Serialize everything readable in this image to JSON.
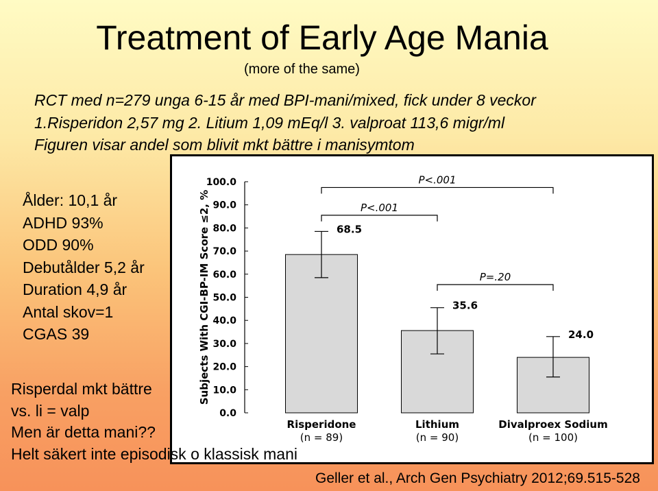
{
  "slide": {
    "title": "Treatment of Early Age Mania",
    "subtitle": "(more of the same)",
    "lines": [
      "RCT med n=279 unga 6-15 år med BPI-mani/mixed, fick under 8 veckor",
      "1.Risperidon 2,57 mg  2. Litium 1,09 mEq/l   3. valproat 113,6  migr/ml",
      "Figuren visar andel som blivit mkt bättre i manisymtom"
    ],
    "stats": [
      "Ålder: 10,1 år",
      "ADHD 93%",
      "ODD 90%",
      "Debutålder 5,2 år",
      "Duration 4,9 år",
      "Antal skov=1",
      "CGAS 39"
    ],
    "bottom_lines": [
      "Risperdal mkt bättre",
      "vs. li = valp",
      "Men är detta mani??",
      "Helt säkert inte episodisk o klassisk mani"
    ],
    "reference": "Geller et al., Arch Gen Psychiatry 2012;69.515-528"
  },
  "chart_data": {
    "type": "bar",
    "title": "",
    "ylabel": "Subjects With CGI-BP-IM Score ≤2, %",
    "ylim": [
      0,
      100
    ],
    "yticks": [
      "0.0",
      "10.0",
      "20.0",
      "30.0",
      "40.0",
      "50.0",
      "60.0",
      "70.0",
      "80.0",
      "90.0",
      "100.0"
    ],
    "categories": [
      "Risperidone",
      "Lithium",
      "Divalproex Sodium"
    ],
    "category_n": [
      "(n = 89)",
      "(n = 90)",
      "(n = 100)"
    ],
    "values": [
      68.5,
      35.6,
      24.0
    ],
    "value_labels": [
      "68.5",
      "35.6",
      "24.0"
    ],
    "error_low": [
      58.5,
      25.5,
      15.5
    ],
    "error_high": [
      78.5,
      45.5,
      33.0
    ],
    "comparisons": [
      {
        "from": 0,
        "to": 2,
        "label": "P<.001",
        "y": 97.5
      },
      {
        "from": 0,
        "to": 1,
        "label": "P<.001",
        "y": 85.5
      },
      {
        "from": 1,
        "to": 2,
        "label": "P=.20",
        "y": 55.5
      }
    ],
    "bar_color": "#d9d9d9",
    "grid": false
  }
}
